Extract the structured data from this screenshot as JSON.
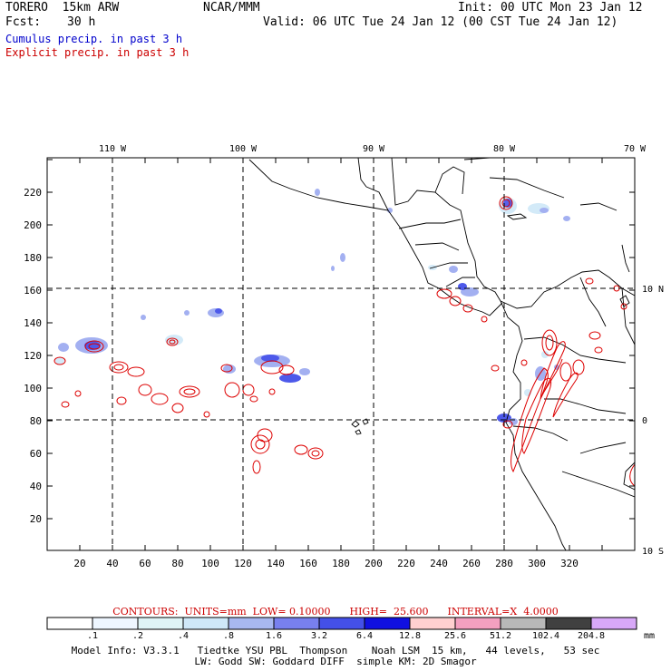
{
  "header": {
    "model": "TORERO  15km ARW",
    "org": "NCAR/MMM",
    "init": "Init: 00 UTC Mon 23 Jan 12",
    "fcst_label": "Fcst:",
    "fcst_value": "30 h",
    "valid": "Valid: 06 UTC Tue 24 Jan 12 (00 CST Tue 24 Jan 12)",
    "legend_cumulus": "Cumulus precip. in past 3 h",
    "legend_explicit": "Explicit precip. in past 3 h",
    "colors": {
      "cumulus": "#0000cc",
      "explicit": "#cc0000"
    }
  },
  "axes": {
    "x_ticks": [
      "20",
      "40",
      "60",
      "80",
      "100",
      "120",
      "140",
      "160",
      "180",
      "200",
      "220",
      "240",
      "260",
      "280",
      "300",
      "320"
    ],
    "y_ticks": [
      "20",
      "40",
      "60",
      "80",
      "100",
      "120",
      "140",
      "160",
      "180",
      "200",
      "220"
    ],
    "lon_labels": [
      "110 W",
      "100 W",
      "90 W",
      "80 W",
      "70 W"
    ],
    "lat_labels": [
      "10 N",
      "0",
      "10 S"
    ]
  },
  "contours": {
    "text": "CONTOURS:  UNITS=mm  LOW= 0.10000      HIGH=  25.600      INTERVAL=X  4.0000"
  },
  "colorbar": {
    "labels": [
      ".1",
      ".2",
      ".4",
      ".8",
      "1.6",
      "3.2",
      "6.4",
      "12.8",
      "25.6",
      "51.2",
      "102.4",
      "204.8"
    ],
    "unit": "mm",
    "colors": [
      "#ffffff",
      "#eef6ff",
      "#dff4f6",
      "#cfe8f8",
      "#a8b8f0",
      "#7880ee",
      "#4450e8",
      "#1010e0",
      "#ffd0d0",
      "#f4a0c0",
      "#b8b8b8",
      "#404040",
      "#d8a8f8"
    ]
  },
  "footer": {
    "line1": "Model Info: V3.3.1   Tiedtke YSU PBL  Thompson    Noah LSM  15 km,   44 levels,   53 sec",
    "line2": "LW: Godd SW: Goddard DIFF  simple KM: 2D Smagor"
  }
}
